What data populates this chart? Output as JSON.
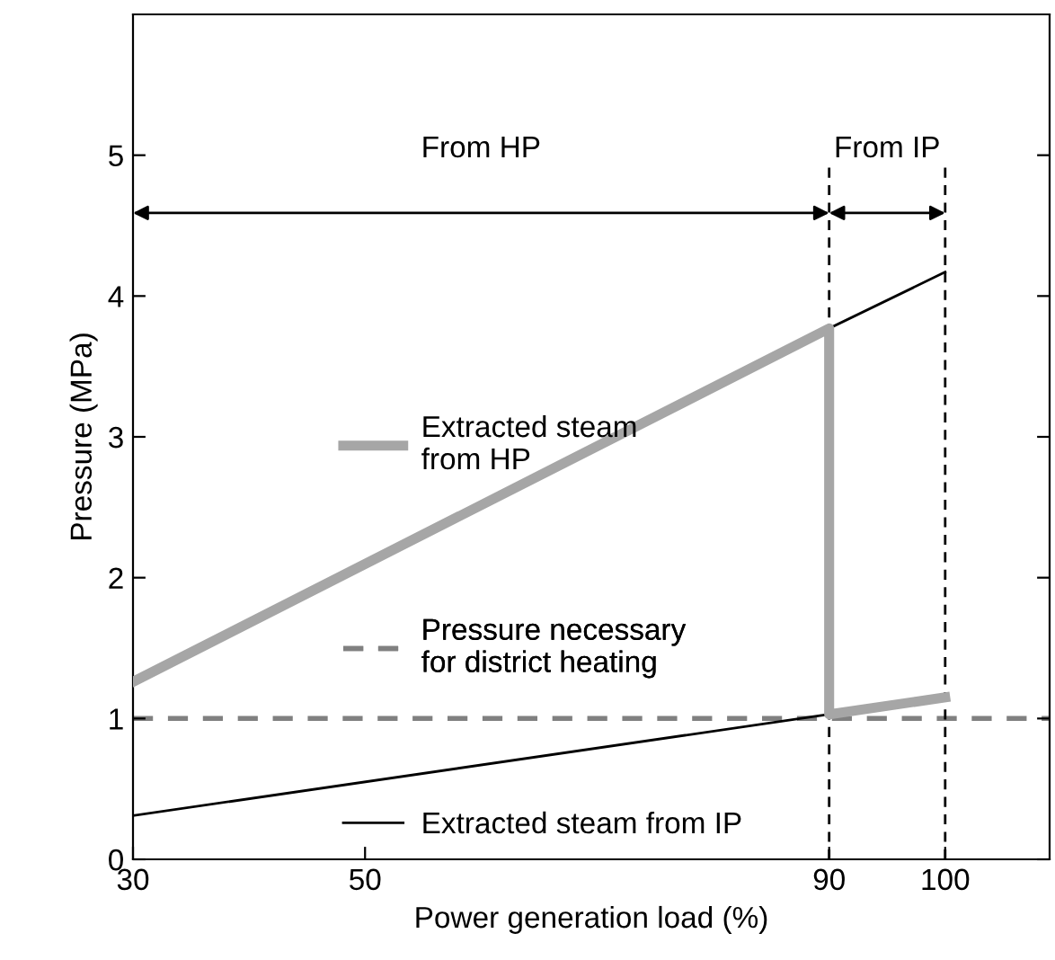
{
  "chart_data": {
    "type": "line",
    "xlabel": "Power generation load (%)",
    "ylabel": "Pressure (MPa)",
    "xlim": [
      30,
      109
    ],
    "ylim": [
      0,
      6
    ],
    "xticks": [
      30,
      50,
      90,
      100
    ],
    "yticks": [
      0,
      1,
      2,
      3,
      4,
      5
    ],
    "grid": false,
    "marker": "none",
    "series": [
      {
        "name": "Extracted steam\nfrom HP",
        "color": "#a6a6a6",
        "x": [
          30,
          90,
          90,
          100
        ],
        "values": [
          1.26,
          3.77,
          1.03,
          1.15
        ]
      },
      {
        "name": "Extracted steam from IP",
        "color": "#000000",
        "x": [
          30,
          90,
          100
        ],
        "values": [
          0.31,
          1.03,
          1.15
        ]
      },
      {
        "color": "#000000",
        "x": [
          90,
          100
        ],
        "values": [
          3.77,
          4.17
        ]
      }
    ],
    "ref_lines": [
      {
        "axis": "y",
        "value": 1,
        "label": "Pressure necessary\nfor district heating",
        "color": "#808080",
        "line_style": "dashed"
      },
      {
        "axis": "x",
        "value": 90,
        "color": "#000000",
        "line_style": "dashed"
      },
      {
        "axis": "x",
        "value": 100,
        "color": "#000000",
        "line_style": "dashed"
      }
    ],
    "legend": "left",
    "annotations": [
      "From HP",
      "From IP"
    ]
  }
}
